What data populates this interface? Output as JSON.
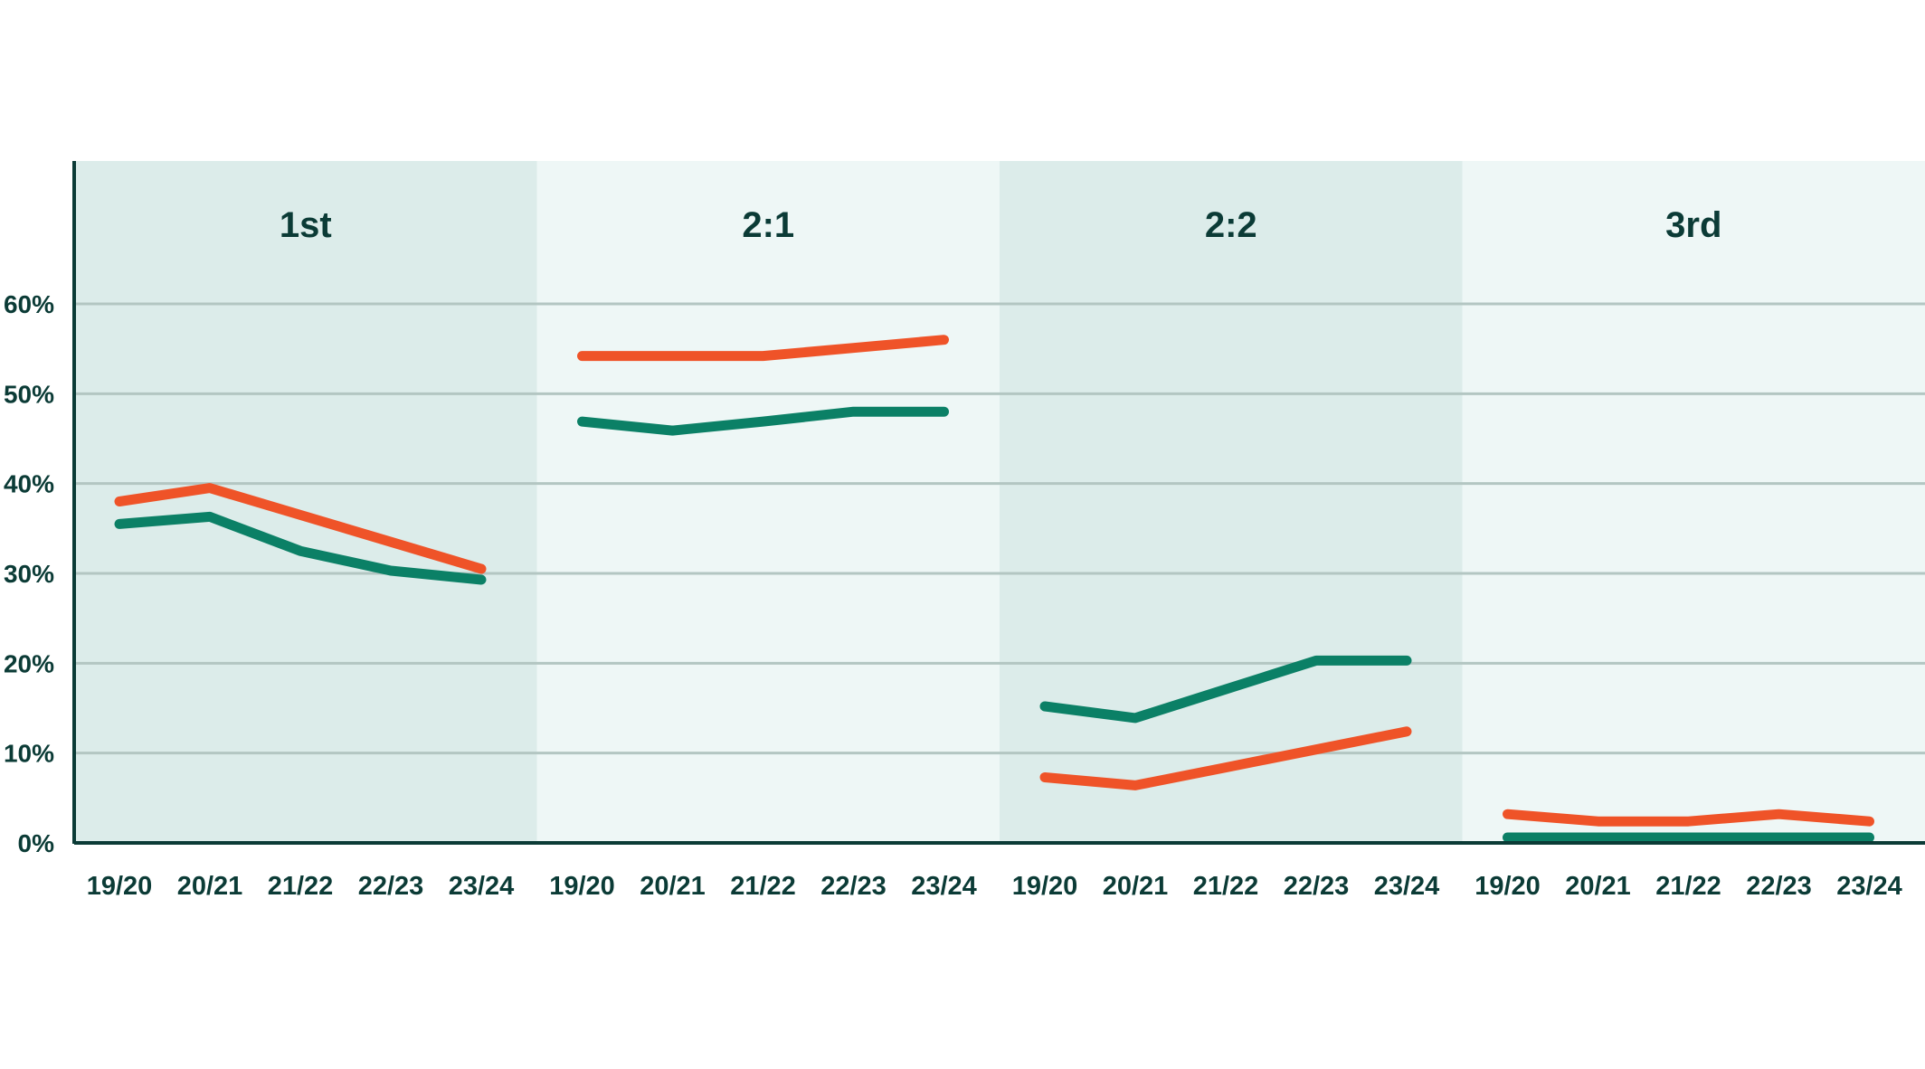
{
  "chart_data": {
    "type": "line",
    "y_axis": {
      "ylim": [
        0,
        60
      ],
      "ticks": [
        0,
        10,
        20,
        30,
        40,
        50,
        60
      ],
      "tick_labels": [
        "0%",
        "10%",
        "20%",
        "30%",
        "40%",
        "50%",
        "60%"
      ]
    },
    "categories": [
      "19/20",
      "20/21",
      "21/22",
      "22/23",
      "23/24"
    ],
    "grid": true,
    "colors": {
      "orange_series": "#ef5328",
      "green_series": "#0b8066",
      "panel_dark": "#dcecea",
      "panel_light": "#eef7f6",
      "gridline": "#b3c6c2",
      "axis": "#0b3b36",
      "text": "#0b3b36"
    },
    "panels": [
      {
        "title": "1st",
        "series": [
          {
            "color_key": "orange_series",
            "values": [
              38,
              39.5,
              36.5,
              33.5,
              30.5
            ]
          },
          {
            "color_key": "green_series",
            "values": [
              35.5,
              36.3,
              32.5,
              30.3,
              29.3
            ]
          }
        ]
      },
      {
        "title": "2:1",
        "series": [
          {
            "color_key": "orange_series",
            "values": [
              54.2,
              54.2,
              54.2,
              55.1,
              56
            ]
          },
          {
            "color_key": "green_series",
            "values": [
              46.9,
              45.9,
              46.9,
              48,
              48
            ]
          }
        ]
      },
      {
        "title": "2:2",
        "series": [
          {
            "color_key": "orange_series",
            "values": [
              7.3,
              6.4,
              8.4,
              10.4,
              12.4
            ]
          },
          {
            "color_key": "green_series",
            "values": [
              15.2,
              13.9,
              17.1,
              20.3,
              20.3
            ]
          }
        ]
      },
      {
        "title": "3rd",
        "series": [
          {
            "color_key": "orange_series",
            "values": [
              3.2,
              2.4,
              2.4,
              3.2,
              2.4
            ]
          },
          {
            "color_key": "green_series",
            "values": [
              0.6,
              0.6,
              0.6,
              0.6,
              0.6
            ]
          }
        ]
      }
    ]
  }
}
